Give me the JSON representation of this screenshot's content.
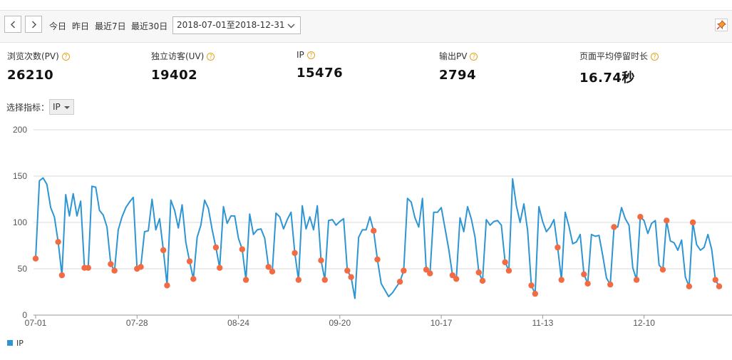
{
  "toolbar": {
    "quick_ranges": [
      "今日",
      "昨日",
      "最近7日",
      "最近30日"
    ],
    "date_range": "2018-07-01至2018-12-31"
  },
  "stats": [
    {
      "label": "浏览次数(PV)",
      "value": "26210"
    },
    {
      "label": "独立访客(UV)",
      "value": "19402"
    },
    {
      "label": "IP",
      "value": "15476"
    },
    {
      "label": "输出PV",
      "value": "2794"
    },
    {
      "label": "页面平均停留时长",
      "value": "16.74秒"
    }
  ],
  "selector": {
    "label": "选择指标：",
    "value": "IP"
  },
  "colors": {
    "line": "#2e95d3",
    "marker": "#f26b43",
    "grid": "#d9d9d9"
  },
  "chart_data": {
    "type": "line",
    "ylim": [
      0,
      200
    ],
    "yticks": [
      0,
      50,
      100,
      150,
      200
    ],
    "xticks": [
      {
        "i": 0,
        "label": "07-01"
      },
      {
        "i": 27,
        "label": "07-28"
      },
      {
        "i": 54,
        "label": "08-24"
      },
      {
        "i": 81,
        "label": "09-20"
      },
      {
        "i": 108,
        "label": "10-17"
      },
      {
        "i": 135,
        "label": "11-13"
      },
      {
        "i": 162,
        "label": "12-10"
      }
    ],
    "series": [
      {
        "name": "IP",
        "values": [
          61,
          145,
          148,
          141,
          116,
          106,
          79,
          43,
          130,
          107,
          131,
          107,
          123,
          51,
          51,
          139,
          138,
          113,
          108,
          95,
          55,
          48,
          92,
          106,
          116,
          122,
          127,
          50,
          52,
          90,
          91,
          125,
          92,
          104,
          70,
          32,
          124,
          113,
          94,
          119,
          78,
          58,
          39,
          84,
          97,
          124,
          115,
          92,
          73,
          51,
          117,
          99,
          107,
          107,
          83,
          71,
          38,
          109,
          87,
          92,
          93,
          83,
          52,
          47,
          110,
          106,
          93,
          103,
          111,
          67,
          38,
          118,
          93,
          106,
          92,
          118,
          59,
          38,
          102,
          103,
          97,
          101,
          104,
          48,
          41,
          18,
          84,
          92,
          92,
          106,
          91,
          60,
          34,
          27,
          20,
          24,
          30,
          36,
          48,
          126,
          122,
          105,
          95,
          126,
          49,
          45,
          111,
          111,
          116,
          94,
          71,
          43,
          39,
          105,
          90,
          117,
          104,
          84,
          46,
          37,
          103,
          97,
          101,
          102,
          97,
          57,
          48,
          147,
          118,
          100,
          120,
          91,
          32,
          23,
          117,
          101,
          90,
          95,
          103,
          73,
          38,
          111,
          96,
          77,
          79,
          87,
          44,
          34,
          87,
          85,
          86,
          64,
          40,
          33,
          95,
          95,
          116,
          104,
          97,
          51,
          38,
          106,
          102,
          88,
          99,
          102,
          54,
          49,
          102,
          80,
          78,
          70,
          81,
          41,
          31,
          100,
          76,
          70,
          73,
          87,
          71,
          38,
          31
        ],
        "markers": [
          0,
          6,
          7,
          13,
          14,
          20,
          21,
          27,
          28,
          34,
          35,
          41,
          42,
          48,
          49,
          55,
          56,
          62,
          63,
          69,
          70,
          76,
          77,
          83,
          84,
          90,
          91,
          97,
          98,
          104,
          105,
          111,
          112,
          118,
          119,
          125,
          126,
          132,
          133,
          139,
          140,
          146,
          147,
          153,
          154,
          160,
          161,
          167,
          168,
          174,
          175,
          181,
          182
        ]
      }
    ]
  }
}
